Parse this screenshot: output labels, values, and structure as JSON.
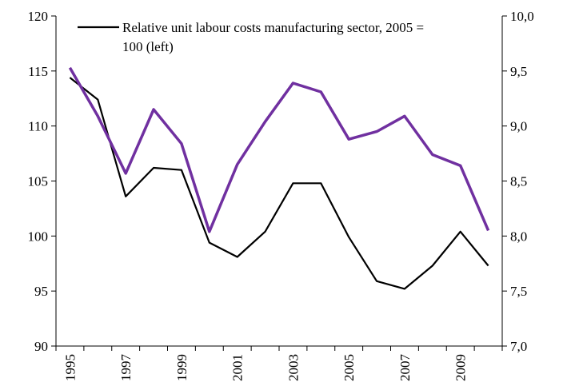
{
  "chart_data": {
    "type": "line",
    "x": [
      1995,
      1996,
      1997,
      1998,
      1999,
      2000,
      2001,
      2002,
      2003,
      2004,
      2005,
      2006,
      2007,
      2008,
      2009,
      2010
    ],
    "x_tick_labels": [
      "1995",
      "1997",
      "1999",
      "2001",
      "2003",
      "2005",
      "2007",
      "2009"
    ],
    "y_left": {
      "ylim": [
        90,
        120
      ],
      "ticks": [
        "90",
        "95",
        "100",
        "105",
        "110",
        "115",
        "120"
      ]
    },
    "y_right": {
      "ylim": [
        7.0,
        10.0
      ],
      "ticks": [
        "7,0",
        "7,5",
        "8,0",
        "8,5",
        "9,0",
        "9,5",
        "10,0"
      ]
    },
    "series": [
      {
        "name": "Relative unit labour costs manufacturing sector, 2005 = 100 (left)",
        "legend_lines": [
          "Relative unit labour costs manufacturing sector, 2005 =",
          "100 (left)"
        ],
        "axis": "left",
        "color": "#000000",
        "values": [
          114.4,
          112.4,
          103.6,
          106.2,
          106.0,
          99.4,
          98.1,
          100.4,
          104.8,
          104.8,
          99.9,
          95.9,
          95.2,
          97.3,
          100.4,
          97.3
        ]
      },
      {
        "name": "",
        "axis": "right",
        "color": "#7030a0",
        "values": [
          9.53,
          9.09,
          8.57,
          9.15,
          8.84,
          8.04,
          8.65,
          9.04,
          9.39,
          9.31,
          8.88,
          8.95,
          9.09,
          8.74,
          8.64,
          8.05
        ]
      }
    ],
    "legend_placement": "top",
    "grid": false
  }
}
